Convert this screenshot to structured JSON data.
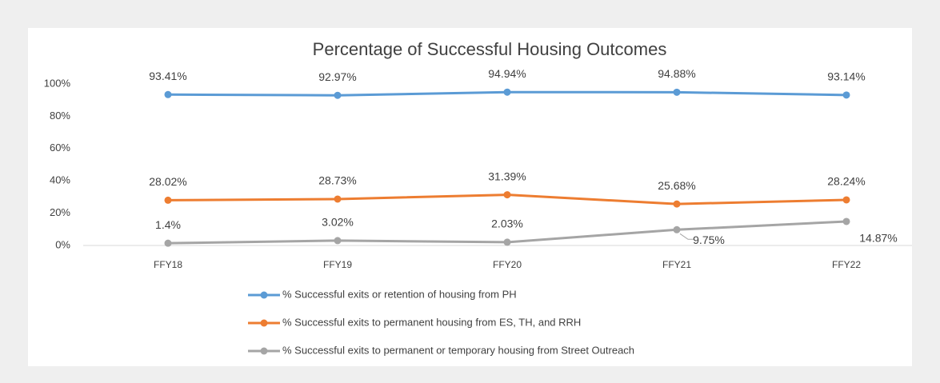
{
  "chart_data": {
    "type": "line",
    "title": "Percentage of Successful Housing Outcomes",
    "categories": [
      "FFY18",
      "FFY19",
      "FFY20",
      "FFY21",
      "FFY22"
    ],
    "ylim": [
      0,
      100
    ],
    "yticks": [
      {
        "value": 0,
        "label": "0%"
      },
      {
        "value": 20,
        "label": "20%"
      },
      {
        "value": 40,
        "label": "40%"
      },
      {
        "value": 60,
        "label": "60%"
      },
      {
        "value": 80,
        "label": "80%"
      },
      {
        "value": 100,
        "label": "100%"
      }
    ],
    "legend": "bottom",
    "series": [
      {
        "name": "% Successful exits or retention of housing from PH",
        "color": "#5b9bd5",
        "values": [
          93.41,
          92.97,
          94.94,
          94.88,
          93.14
        ],
        "value_labels": [
          "93.41%",
          "92.97%",
          "94.94%",
          "94.88%",
          "93.14%"
        ]
      },
      {
        "name": "% Successful exits to permanent housing from ES, TH, and RRH",
        "color": "#ed7d31",
        "values": [
          28.02,
          28.73,
          31.39,
          25.68,
          28.24
        ],
        "value_labels": [
          "28.02%",
          "28.73%",
          "31.39%",
          "25.68%",
          "28.24%"
        ]
      },
      {
        "name": "% Successful exits to permanent or temporary housing from Street Outreach",
        "color": "#a5a5a5",
        "values": [
          1.4,
          3.02,
          2.03,
          9.75,
          14.87
        ],
        "value_labels": [
          "1.4%",
          "3.02%",
          "2.03%",
          "9.75%",
          "14.87%"
        ]
      }
    ]
  }
}
